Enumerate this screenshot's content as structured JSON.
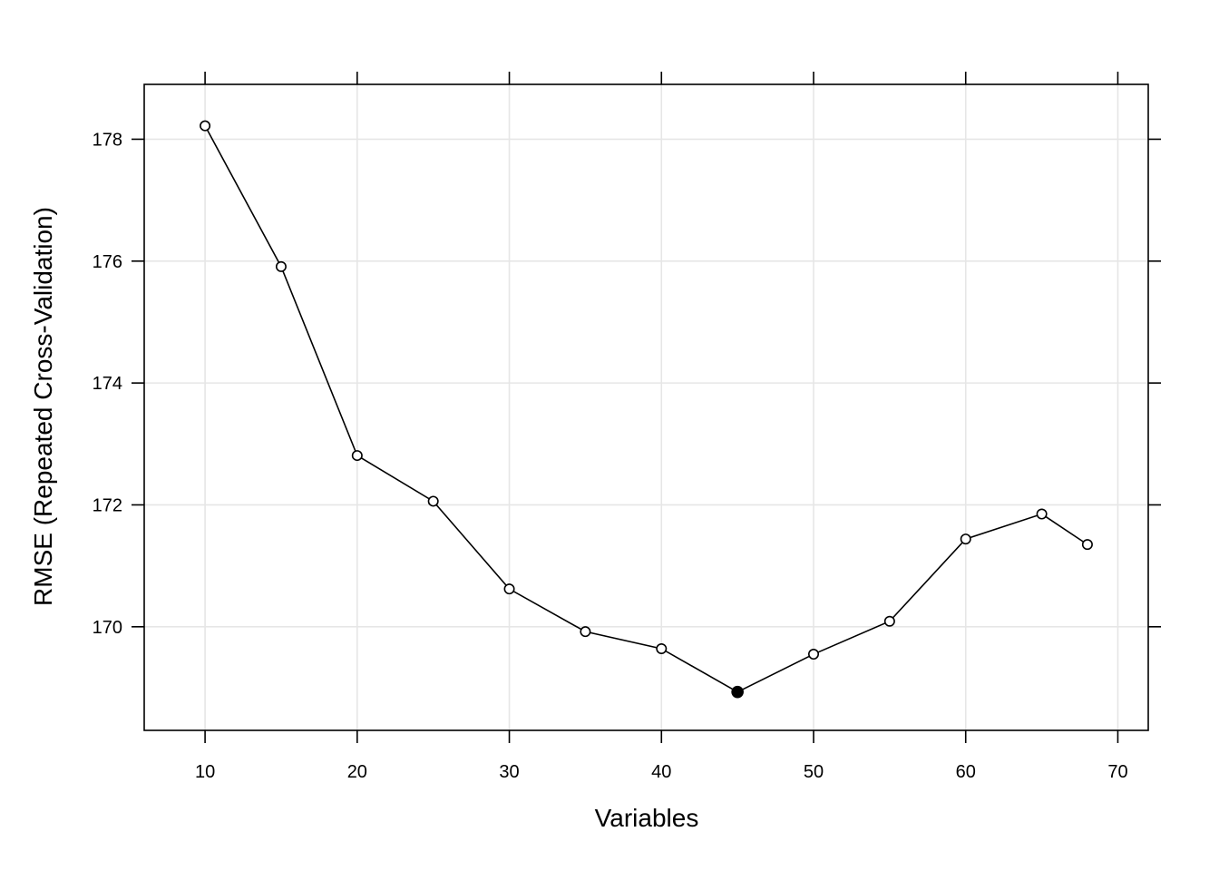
{
  "chart_data": {
    "type": "line",
    "title": "",
    "xlabel": "Variables",
    "ylabel": "RMSE (Repeated Cross-Validation)",
    "xlim": [
      6,
      72
    ],
    "ylim": [
      168.3,
      178.9
    ],
    "x_ticks": [
      10,
      20,
      30,
      40,
      50,
      60,
      70
    ],
    "x_tick_labels": [
      "10",
      "20",
      "30",
      "40",
      "50",
      "60",
      "70"
    ],
    "y_ticks": [
      170,
      172,
      174,
      176,
      178
    ],
    "y_tick_labels": [
      "170",
      "172",
      "174",
      "176",
      "178"
    ],
    "grid": true,
    "legend": "none",
    "series": [
      {
        "x": [
          10,
          15,
          20,
          25,
          30,
          35,
          40,
          45,
          50,
          55,
          60,
          65,
          68
        ],
        "y": [
          178.22,
          175.91,
          172.81,
          172.06,
          170.62,
          169.92,
          169.64,
          168.93,
          169.55,
          170.09,
          171.44,
          171.85,
          171.35
        ]
      }
    ],
    "highlight": {
      "x": 45,
      "y": 168.93,
      "marker": "filled"
    },
    "colors": {
      "line": "#000000",
      "grid": "#e6e6e6",
      "frame": "#000000"
    }
  }
}
